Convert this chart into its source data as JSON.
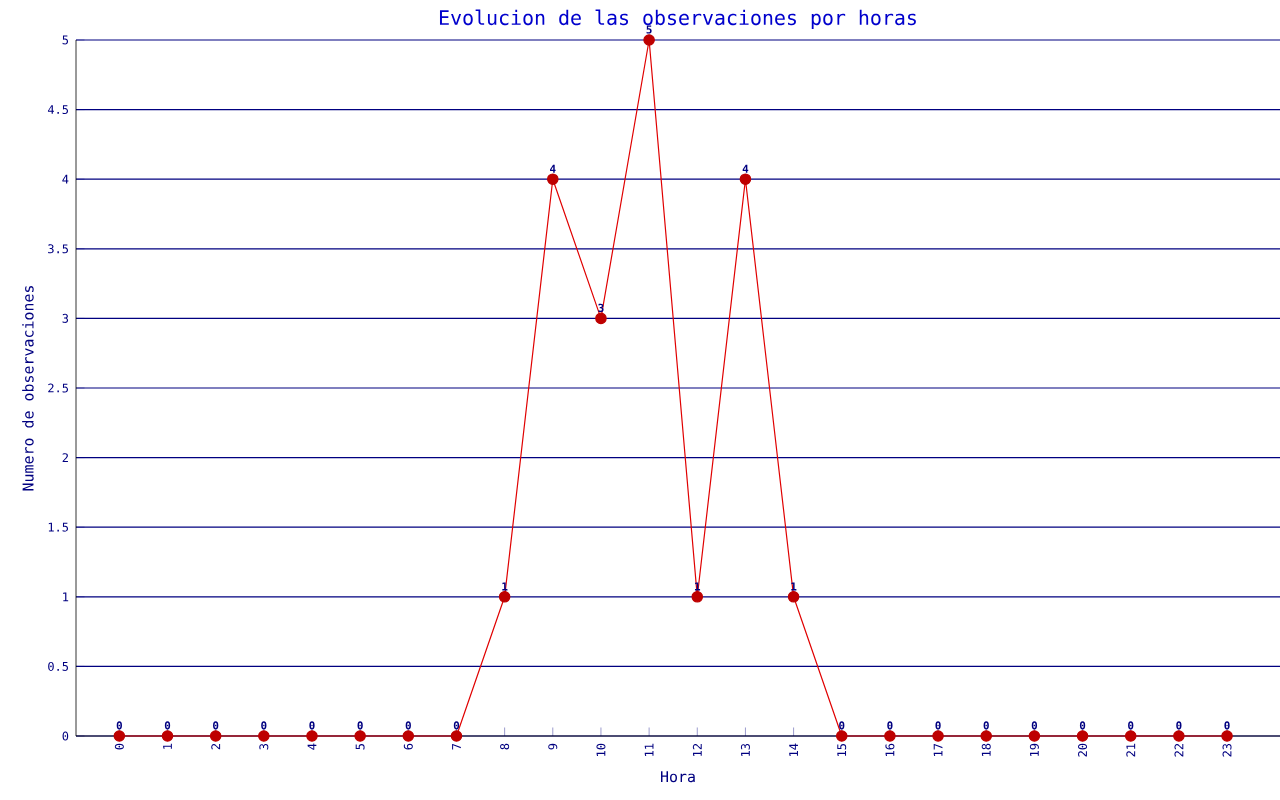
{
  "chart_data": {
    "type": "line",
    "title": "Evolucion de las observaciones por horas",
    "xlabel": "Hora",
    "ylabel": "Numero de observaciones",
    "categories": [
      "0",
      "1",
      "2",
      "3",
      "4",
      "5",
      "6",
      "7",
      "8",
      "9",
      "10",
      "11",
      "12",
      "13",
      "14",
      "15",
      "16",
      "17",
      "18",
      "19",
      "20",
      "21",
      "22",
      "23"
    ],
    "values": [
      0,
      0,
      0,
      0,
      0,
      0,
      0,
      0,
      1,
      4,
      3,
      5,
      1,
      4,
      1,
      0,
      0,
      0,
      0,
      0,
      0,
      0,
      0,
      0
    ],
    "color": "#e00000",
    "marker": "circle",
    "data_labels": true,
    "grid": "y",
    "ylim": [
      0,
      5
    ],
    "yticks": [
      0,
      0.5,
      1,
      1.5,
      2,
      2.5,
      3,
      3.5,
      4,
      4.5,
      5
    ]
  }
}
